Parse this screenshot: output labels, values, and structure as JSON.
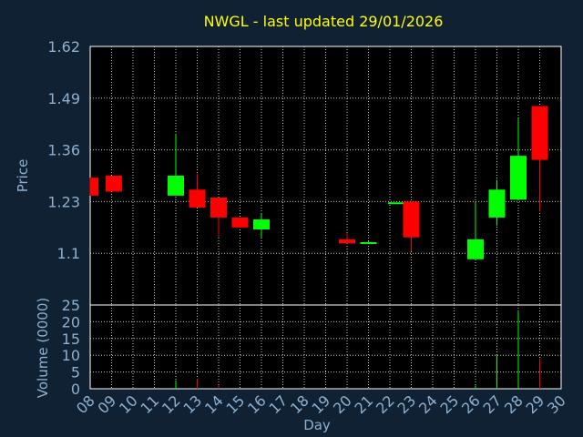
{
  "chart_data": {
    "type": "candlestick",
    "title": "NWGL - last updated 29/01/2026",
    "xlabel": "Day",
    "price_ylabel": "Price",
    "volume_ylabel": "Volume (0000)",
    "x_ticks": [
      "08",
      "09",
      "10",
      "11",
      "12",
      "13",
      "14",
      "15",
      "16",
      "17",
      "18",
      "19",
      "20",
      "21",
      "22",
      "23",
      "24",
      "25",
      "26",
      "27",
      "28",
      "29",
      "30"
    ],
    "price_ticks": [
      "1.62",
      "1.49",
      "1.36",
      "1.23",
      "1.1"
    ],
    "price_ylim": [
      0.97,
      1.62
    ],
    "volume_ticks": [
      "25",
      "20",
      "15",
      "10",
      "5",
      "0"
    ],
    "volume_ylim": [
      0,
      25
    ],
    "grid": true,
    "colors": {
      "up": "#00ff00",
      "down": "#ff0000",
      "title": "#ffff00",
      "axis_text": "#8fb0cf",
      "plot_bg": "#000000",
      "page_bg": "#0f2133"
    },
    "candles": [
      {
        "day": 8.0,
        "open": 1.29,
        "high": 1.29,
        "low": 1.245,
        "close": 1.245,
        "volume": 0
      },
      {
        "day": 9.1,
        "open": 1.295,
        "high": 1.295,
        "low": 1.255,
        "close": 1.255,
        "volume": 0
      },
      {
        "day": 12.0,
        "open": 1.245,
        "high": 1.4,
        "low": 1.245,
        "close": 1.295,
        "volume": 2.5
      },
      {
        "day": 13.0,
        "open": 1.26,
        "high": 1.3,
        "low": 1.215,
        "close": 1.215,
        "volume": 3
      },
      {
        "day": 14.0,
        "open": 1.24,
        "high": 1.24,
        "low": 1.14,
        "close": 1.19,
        "volume": 1
      },
      {
        "day": 15.0,
        "open": 1.19,
        "high": 1.19,
        "low": 1.165,
        "close": 1.165,
        "volume": 0
      },
      {
        "day": 16.0,
        "open": 1.16,
        "high": 1.2,
        "low": 1.14,
        "close": 1.185,
        "volume": 0
      },
      {
        "day": 20.0,
        "open": 1.135,
        "high": 1.15,
        "low": 1.125,
        "close": 1.125,
        "volume": 0
      },
      {
        "day": 21.0,
        "open": 1.125,
        "high": 1.13,
        "low": 1.125,
        "close": 1.128,
        "volume": 0
      },
      {
        "day": 22.3,
        "open": 1.226,
        "high": 1.228,
        "low": 1.226,
        "close": 1.228,
        "volume": 0
      },
      {
        "day": 23.0,
        "open": 1.23,
        "high": 1.23,
        "low": 1.105,
        "close": 1.14,
        "volume": 0
      },
      {
        "day": 26.0,
        "open": 1.085,
        "high": 1.23,
        "low": 1.085,
        "close": 1.135,
        "volume": 1
      },
      {
        "day": 27.0,
        "open": 1.19,
        "high": 1.285,
        "low": 1.17,
        "close": 1.26,
        "volume": 10
      },
      {
        "day": 28.0,
        "open": 1.235,
        "high": 1.44,
        "low": 1.235,
        "close": 1.345,
        "volume": 23
      },
      {
        "day": 29.0,
        "open": 1.47,
        "high": 1.47,
        "low": 1.205,
        "close": 1.335,
        "volume": 9
      }
    ]
  }
}
